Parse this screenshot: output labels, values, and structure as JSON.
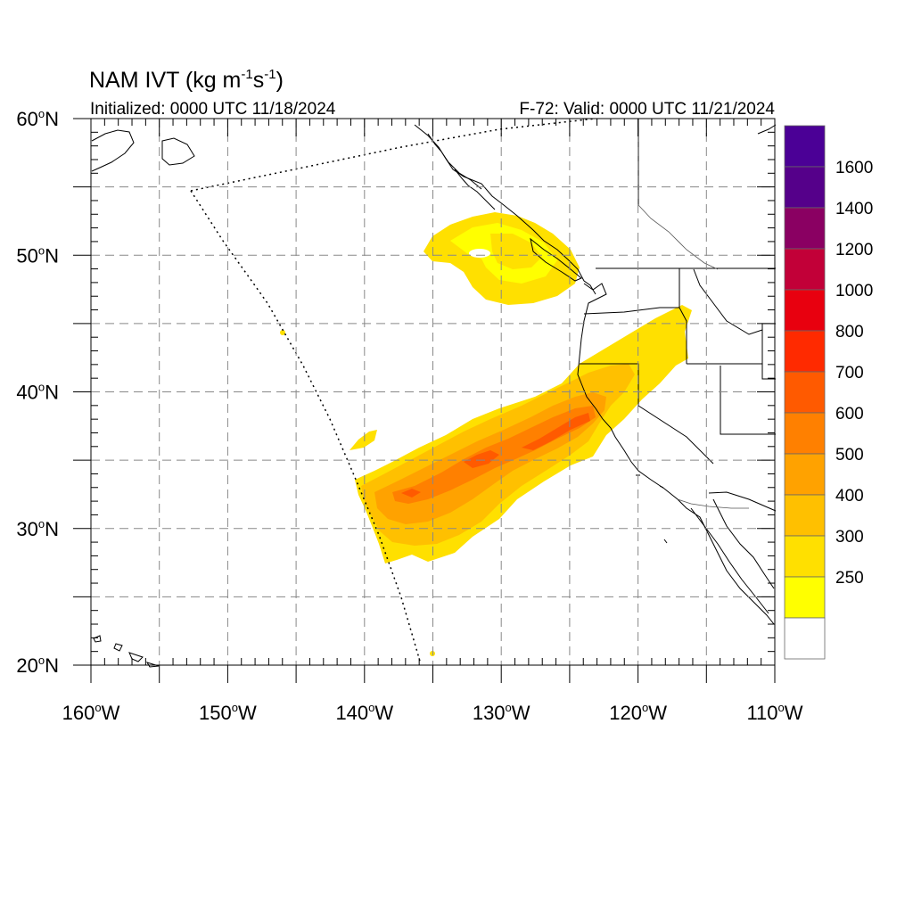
{
  "title": {
    "main": "NAM IVT (kg m",
    "sup1": "-1",
    "mid": "s",
    "sup2": "-1",
    "end": ")"
  },
  "subtitle_left": "Initialized: 0000 UTC 11/18/2024",
  "subtitle_right": "F-72: Valid: 0000 UTC 11/21/2024",
  "map": {
    "lon_range": [
      -160,
      -110
    ],
    "lat_range": [
      20,
      60
    ],
    "lon_ticks": [
      {
        "value": -160,
        "label": "160",
        "unit": "W"
      },
      {
        "value": -150,
        "label": "150",
        "unit": "W"
      },
      {
        "value": -140,
        "label": "140",
        "unit": "W"
      },
      {
        "value": -130,
        "label": "130",
        "unit": "W"
      },
      {
        "value": -120,
        "label": "120",
        "unit": "W"
      },
      {
        "value": -110,
        "label": "110",
        "unit": "W"
      }
    ],
    "lat_ticks": [
      {
        "value": 60,
        "label": "60",
        "unit": "N"
      },
      {
        "value": 50,
        "label": "50",
        "unit": "N"
      },
      {
        "value": 40,
        "label": "40",
        "unit": "N"
      },
      {
        "value": 30,
        "label": "30",
        "unit": "N"
      },
      {
        "value": 20,
        "label": "20",
        "unit": "N"
      }
    ],
    "degree_symbol": "o",
    "gridlines": "dashed",
    "ivt_features": {
      "atmospheric_river_axis_lon_lat": [
        [
          -141,
          30.5
        ],
        [
          -135,
          33
        ],
        [
          -128,
          36
        ],
        [
          -124,
          39.5
        ],
        [
          -120,
          44
        ]
      ],
      "peak_values_approx": 700,
      "northern_blob_center_lon_lat": [
        -131,
        50
      ]
    }
  },
  "colorbar": {
    "levels": [
      {
        "label": "1600",
        "color": "#55008a"
      },
      {
        "label": "1400",
        "color": "#8a0062"
      },
      {
        "label": "1200",
        "color": "#c20038"
      },
      {
        "label": "1000",
        "color": "#e8000f"
      },
      {
        "label": "800",
        "color": "#ff2a00"
      },
      {
        "label": "700",
        "color": "#ff5a00"
      },
      {
        "label": "600",
        "color": "#ff8000"
      },
      {
        "label": "500",
        "color": "#ffa200"
      },
      {
        "label": "400",
        "color": "#ffc000"
      },
      {
        "label": "300",
        "color": "#ffe000"
      },
      {
        "label": "250",
        "color": "#ffff00"
      }
    ],
    "top_color": "#4b0096",
    "bottom_color": "#ffffff"
  }
}
